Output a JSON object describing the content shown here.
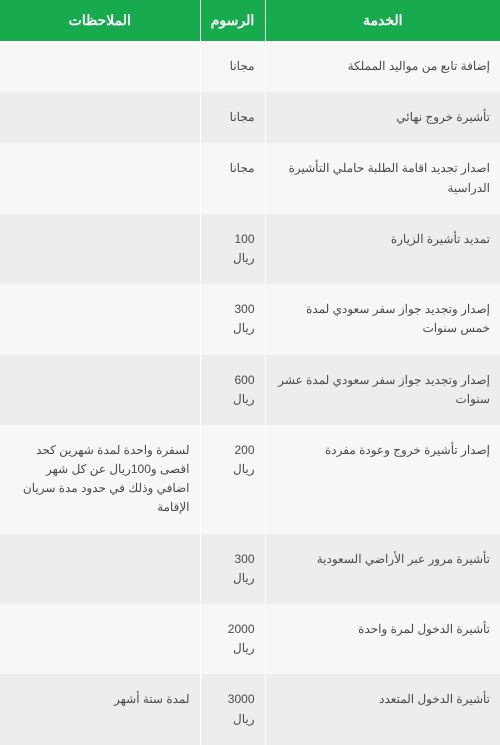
{
  "colors": {
    "header_bg": "#18ab4e",
    "row_odd": "#f7f7f7",
    "row_even": "#ededed",
    "text": "#4a4a4a",
    "header_text": "#ffffff",
    "border": "#ffffff"
  },
  "headers": {
    "service": "الخدمة",
    "fee": "الرسوم",
    "notes": "الملاحظات"
  },
  "rows": [
    {
      "service": "إضافة تابع من مواليد المملكة",
      "fee": "مجانا",
      "notes": ""
    },
    {
      "service": "تأشيرة خروج نهائي",
      "fee": "مجانا",
      "notes": ""
    },
    {
      "service": "اصدار تجديد اقامة الطلبة حاملي التأشيرة الدراسية",
      "fee": "مجانا",
      "notes": ""
    },
    {
      "service": "تمديد تأشيرة الزيارة",
      "fee": "100 ريال",
      "notes": ""
    },
    {
      "service": "إصدار وتجديد جواز سفر سعودي لمدة خمس سنوات",
      "fee": "300 ريال",
      "notes": ""
    },
    {
      "service": "إصدار وتجديد جواز سفر سعودي لمدة عشر سنوات",
      "fee": "600 ريال",
      "notes": ""
    },
    {
      "service": "إصدار تأشيرة خروج وعودة مفردة",
      "fee": "200 ريال",
      "notes": "لسفرة واحدة لمدة شهرين كحد اقصى و100ريال عن كل شهر اضافي وذلك في حدود مدة سريان الإقامة"
    },
    {
      "service": "تأشيرة مرور عبر الأراضي السعودية",
      "fee": "300 ريال",
      "notes": ""
    },
    {
      "service": "تأشيرة الدخول لمرة واحدة",
      "fee": "2000 ريال",
      "notes": ""
    },
    {
      "service": "تأشيرة الدخول المتعدد",
      "fee": "3000 ريال",
      "notes": "لمدة ستة أشهر"
    }
  ]
}
